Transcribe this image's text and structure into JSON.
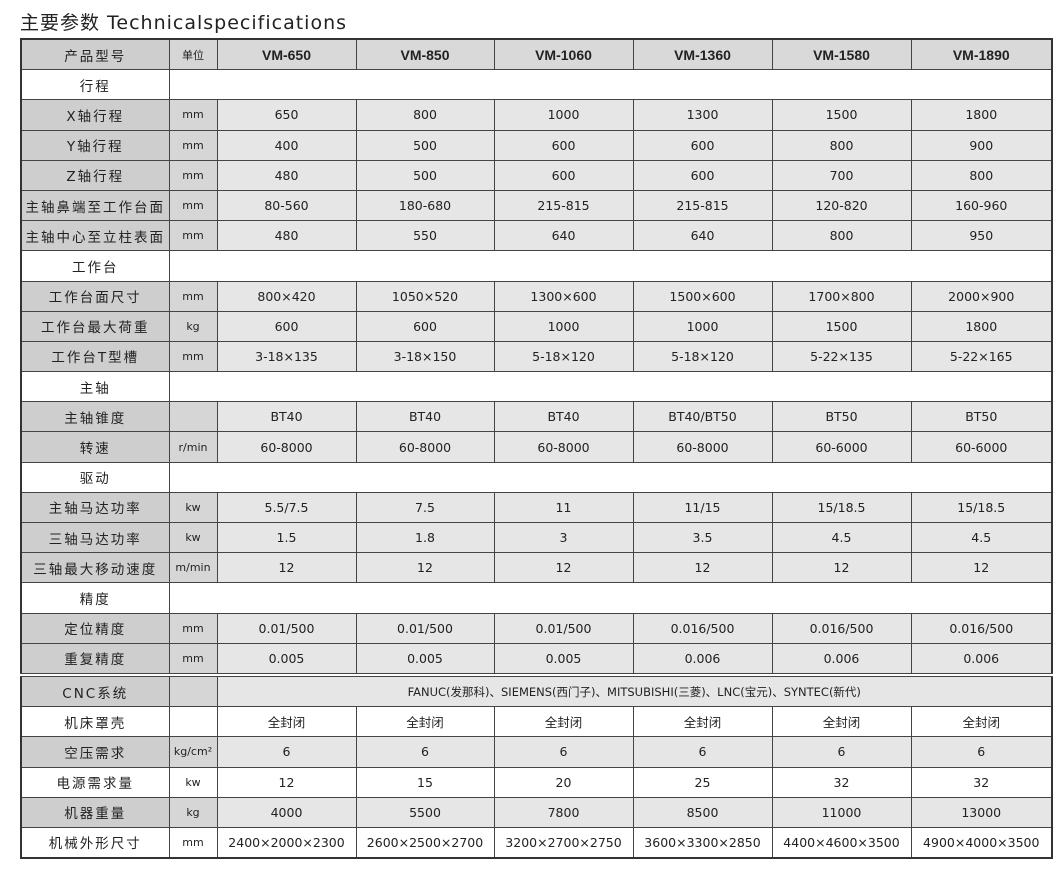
{
  "title": "主要参数 Technicalspecifications",
  "header": {
    "label": "产品型号",
    "unit": "单位",
    "models": [
      "VM-650",
      "VM-850",
      "VM-1060",
      "VM-1360",
      "VM-1580",
      "VM-1890"
    ]
  },
  "rows": [
    {
      "type": "section",
      "label": "行程"
    },
    {
      "label": "X轴行程",
      "unit": "mm",
      "values": [
        "650",
        "800",
        "1000",
        "1300",
        "1500",
        "1800"
      ]
    },
    {
      "label": "Y轴行程",
      "unit": "mm",
      "values": [
        "400",
        "500",
        "600",
        "600",
        "800",
        "900"
      ]
    },
    {
      "label": "Z轴行程",
      "unit": "mm",
      "values": [
        "480",
        "500",
        "600",
        "600",
        "700",
        "800"
      ]
    },
    {
      "label": "主轴鼻端至工作台面",
      "unit": "mm",
      "values": [
        "80-560",
        "180-680",
        "215-815",
        "215-815",
        "120-820",
        "160-960"
      ]
    },
    {
      "label": "主轴中心至立柱表面",
      "unit": "mm",
      "values": [
        "480",
        "550",
        "640",
        "640",
        "800",
        "950"
      ]
    },
    {
      "type": "section",
      "label": "工作台"
    },
    {
      "label": "工作台面尺寸",
      "unit": "mm",
      "values": [
        "800×420",
        "1050×520",
        "1300×600",
        "1500×600",
        "1700×800",
        "2000×900"
      ]
    },
    {
      "label": "工作台最大荷重",
      "unit": "kg",
      "values": [
        "600",
        "600",
        "1000",
        "1000",
        "1500",
        "1800"
      ]
    },
    {
      "label": "工作台T型槽",
      "unit": "mm",
      "values": [
        "3-18×135",
        "3-18×150",
        "5-18×120",
        "5-18×120",
        "5-22×135",
        "5-22×165"
      ]
    },
    {
      "type": "section",
      "label": "主轴"
    },
    {
      "label": "主轴锥度",
      "unit": "",
      "values": [
        "BT40",
        "BT40",
        "BT40",
        "BT40/BT50",
        "BT50",
        "BT50"
      ]
    },
    {
      "label": "转速",
      "unit": "r/min",
      "values": [
        "60-8000",
        "60-8000",
        "60-8000",
        "60-8000",
        "60-6000",
        "60-6000"
      ]
    },
    {
      "type": "section",
      "label": "驱动"
    },
    {
      "label": "主轴马达功率",
      "unit": "kw",
      "values": [
        "5.5/7.5",
        "7.5",
        "11",
        "11/15",
        "15/18.5",
        "15/18.5"
      ]
    },
    {
      "label": "三轴马达功率",
      "unit": "kw",
      "values": [
        "1.5",
        "1.8",
        "3",
        "3.5",
        "4.5",
        "4.5"
      ]
    },
    {
      "label": "三轴最大移动速度",
      "unit": "m/min",
      "values": [
        "12",
        "12",
        "12",
        "12",
        "12",
        "12"
      ]
    },
    {
      "type": "section",
      "label": "精度"
    },
    {
      "label": "定位精度",
      "unit": "mm",
      "values": [
        "0.01/500",
        "0.01/500",
        "0.01/500",
        "0.016/500",
        "0.016/500",
        "0.016/500"
      ]
    },
    {
      "label": "重复精度",
      "unit": "mm",
      "values": [
        "0.005",
        "0.005",
        "0.005",
        "0.006",
        "0.006",
        "0.006"
      ]
    },
    {
      "type": "span",
      "label": "CNC系统",
      "unit": "",
      "text": "FANUC(发那科)、SIEMENS(西门子)、MITSUBISHI(三菱)、LNC(宝元)、SYNTEC(新代)"
    },
    {
      "type": "white",
      "label": "机床罩壳",
      "unit": "",
      "values": [
        "全封闭",
        "全封闭",
        "全封闭",
        "全封闭",
        "全封闭",
        "全封闭"
      ]
    },
    {
      "label": "空压需求",
      "unit": "kg/cm²",
      "values": [
        "6",
        "6",
        "6",
        "6",
        "6",
        "6"
      ]
    },
    {
      "type": "white",
      "label": "电源需求量",
      "unit": "kw",
      "values": [
        "12",
        "15",
        "20",
        "25",
        "32",
        "32"
      ]
    },
    {
      "label": "机器重量",
      "unit": "kg",
      "values": [
        "4000",
        "5500",
        "7800",
        "8500",
        "11000",
        "13000"
      ]
    },
    {
      "type": "white",
      "label": "机械外形尺寸",
      "unit": "mm",
      "values": [
        "2400×2000×2300",
        "2600×2500×2700",
        "3200×2700×2750",
        "3600×3300×2850",
        "4400×4600×3500",
        "4900×4000×3500"
      ]
    }
  ]
}
